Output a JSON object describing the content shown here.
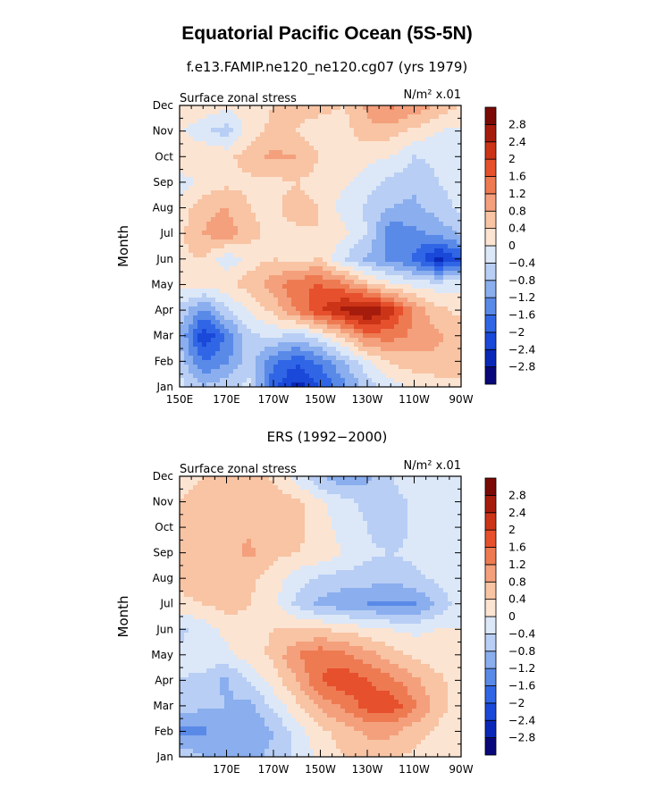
{
  "figure": {
    "title": "Equatorial Pacific Ocean (5S-5N)"
  },
  "contour_levels": [
    -2.8,
    -2.4,
    -2,
    -1.6,
    -1.2,
    -0.8,
    -0.4,
    0,
    0.4,
    0.8,
    1.2,
    1.6,
    2,
    2.4,
    2.8
  ],
  "colorbar_labels": [
    "2.8",
    "2.4",
    "2",
    "1.6",
    "1.2",
    "0.8",
    "0.4",
    "0",
    "−0.4",
    "−0.8",
    "−1.2",
    "−1.6",
    "−2",
    "−2.4",
    "−2.8"
  ],
  "colors": [
    "#08087a",
    "#0a28b8",
    "#1a48d8",
    "#3066e6",
    "#5a8ae8",
    "#8aaeee",
    "#b8cef4",
    "#dce8f8",
    "#fce4d2",
    "#f8c4a4",
    "#f4a07c",
    "#ee7a52",
    "#e6502c",
    "#cc3418",
    "#a61c0c",
    "#7a0a06"
  ],
  "month_labels": [
    "Jan",
    "Feb",
    "Mar",
    "Apr",
    "May",
    "Jun",
    "Jul",
    "Aug",
    "Sep",
    "Oct",
    "Nov",
    "Dec"
  ],
  "chart_data": [
    {
      "type": "heatmap",
      "title": "f.e13.FAMIP.ne120_ne120.cg07 (yrs 1979)",
      "left_label": "Surface zonal stress",
      "right_label": "N/m² x.01",
      "ylabel": "Month",
      "xlabel": "",
      "x_tick_labels": [
        "150E",
        "170E",
        "170W",
        "150W",
        "130W",
        "110W",
        "90W"
      ],
      "x_range_deg_east": [
        150,
        270
      ],
      "y_range": [
        "Jan",
        "Dec"
      ],
      "grid_lon_deg_east": [
        150,
        160,
        170,
        180,
        190,
        200,
        210,
        220,
        230,
        240,
        250,
        260,
        270
      ],
      "grid_month": [
        "Jan",
        "Feb",
        "Mar",
        "Apr",
        "May",
        "Jun",
        "Jul",
        "Aug",
        "Sep",
        "Oct",
        "Nov",
        "Dec"
      ],
      "values": [
        [
          -0.2,
          -0.8,
          -0.5,
          -0.3,
          -1.9,
          -2.6,
          -2.0,
          -1.3,
          -0.6,
          -0.2,
          0.1,
          0.2,
          0.3
        ],
        [
          -0.6,
          -1.6,
          -1.3,
          -0.6,
          -1.5,
          -1.9,
          -1.5,
          -0.8,
          -0.1,
          0.5,
          0.6,
          0.7,
          0.6
        ],
        [
          -0.8,
          -2.4,
          -1.5,
          -0.5,
          -0.3,
          -0.6,
          -0.1,
          0.6,
          1.4,
          1.4,
          1.1,
          0.9,
          0.6
        ],
        [
          -0.5,
          -1.3,
          -0.5,
          0.1,
          0.5,
          1.3,
          2.0,
          2.5,
          2.9,
          2.2,
          1.1,
          0.5,
          0.3
        ],
        [
          0.1,
          0.2,
          0.3,
          0.6,
          1.0,
          1.5,
          1.6,
          1.3,
          0.6,
          0.1,
          -0.1,
          -0.2,
          -0.1
        ],
        [
          0.3,
          0.4,
          -0.3,
          0.2,
          0.4,
          0.3,
          0.4,
          -0.4,
          -0.9,
          -1.3,
          -1.7,
          -2.6,
          -2.0
        ],
        [
          0.3,
          0.8,
          1.1,
          0.5,
          0.3,
          0.3,
          0.4,
          0.1,
          -0.4,
          -1.5,
          -1.3,
          -1.1,
          -0.7
        ],
        [
          0.1,
          0.7,
          0.8,
          0.4,
          0.3,
          0.6,
          0.4,
          -0.2,
          -0.5,
          -0.8,
          -0.9,
          -0.6,
          -0.3
        ],
        [
          -0.2,
          0.1,
          0.3,
          0.3,
          0.3,
          0.4,
          0.2,
          0.1,
          -0.2,
          -0.5,
          -0.7,
          -0.4,
          -0.2
        ],
        [
          0.3,
          0.4,
          0.3,
          0.6,
          0.9,
          0.8,
          0.4,
          0.3,
          0.1,
          0.0,
          -0.4,
          -0.3,
          -0.1
        ],
        [
          0.1,
          -0.3,
          -0.6,
          0.2,
          0.5,
          0.4,
          0.1,
          0.2,
          0.7,
          0.6,
          0.3,
          0.0,
          -0.1
        ],
        [
          0.2,
          0.3,
          0.1,
          0.3,
          0.4,
          0.6,
          0.6,
          0.4,
          0.9,
          1.3,
          1.1,
          0.7,
          0.4
        ]
      ]
    },
    {
      "type": "heatmap",
      "title": "ERS (1992−2000)",
      "left_label": "Surface zonal stress",
      "right_label": "N/m² x.01",
      "ylabel": "Month",
      "xlabel": "",
      "x_tick_labels": [
        "170E",
        "170W",
        "150W",
        "130W",
        "110W",
        "90W"
      ],
      "x_range_deg_east": [
        150,
        270
      ],
      "y_range": [
        "Jan",
        "Dec"
      ],
      "grid_lon_deg_east": [
        150,
        160,
        170,
        180,
        190,
        200,
        210,
        220,
        230,
        240,
        250,
        260,
        270
      ],
      "grid_month": [
        "Jan",
        "Feb",
        "Mar",
        "Apr",
        "May",
        "Jun",
        "Jul",
        "Aug",
        "Sep",
        "Oct",
        "Nov",
        "Dec"
      ],
      "values": [
        [
          -0.5,
          -0.8,
          -1.0,
          -0.9,
          -0.7,
          -0.3,
          0.1,
          0.4,
          0.6,
          0.5,
          0.3,
          0.2,
          0.1
        ],
        [
          -1.3,
          -1.3,
          -0.9,
          -1.2,
          -0.8,
          -0.2,
          0.3,
          0.6,
          0.9,
          0.9,
          0.6,
          0.3,
          0.1
        ],
        [
          -0.6,
          -0.7,
          -0.8,
          -0.9,
          -0.3,
          0.3,
          0.9,
          1.3,
          1.8,
          1.9,
          1.3,
          0.6,
          0.2
        ],
        [
          -0.4,
          -0.5,
          -0.9,
          -0.3,
          0.2,
          0.8,
          1.6,
          1.9,
          1.6,
          1.3,
          0.9,
          0.5,
          0.2
        ],
        [
          -0.3,
          -0.2,
          -0.1,
          0.2,
          0.5,
          1.2,
          1.5,
          1.3,
          1.0,
          0.6,
          0.3,
          0.2,
          0.1
        ],
        [
          -0.5,
          -0.2,
          0.1,
          0.3,
          0.4,
          0.4,
          0.4,
          0.3,
          0.1,
          0.0,
          -0.1,
          0.0,
          0.0
        ],
        [
          0.3,
          0.4,
          0.6,
          0.4,
          0.1,
          -0.5,
          -0.9,
          -1.1,
          -1.2,
          -1.3,
          -1.3,
          -0.7,
          -0.2
        ],
        [
          0.5,
          0.6,
          0.6,
          0.5,
          0.2,
          -0.2,
          -0.5,
          -0.6,
          -0.6,
          -0.7,
          -0.5,
          -0.3,
          -0.1
        ],
        [
          0.4,
          0.6,
          0.7,
          0.9,
          0.5,
          0.4,
          0.3,
          0.0,
          -0.3,
          -0.4,
          -0.3,
          -0.1,
          0.0
        ],
        [
          0.6,
          0.6,
          0.6,
          0.7,
          0.6,
          0.5,
          0.2,
          -0.2,
          -0.4,
          -0.7,
          -0.3,
          -0.1,
          0.0
        ],
        [
          0.4,
          0.5,
          0.7,
          0.8,
          0.7,
          0.5,
          0.1,
          -0.3,
          -0.5,
          -0.6,
          -0.3,
          -0.1,
          0.0
        ],
        [
          0.3,
          0.4,
          0.6,
          0.6,
          0.3,
          -0.2,
          -0.8,
          -1.2,
          -0.9,
          -0.4,
          -0.1,
          0.0,
          0.0
        ]
      ]
    }
  ]
}
